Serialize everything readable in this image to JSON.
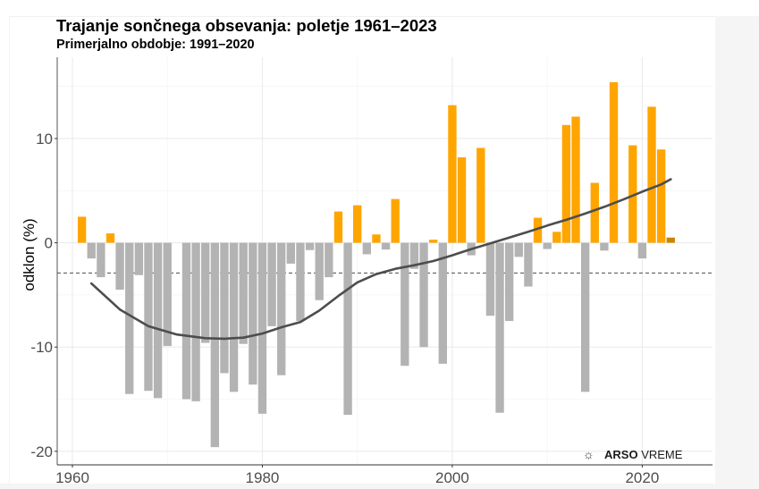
{
  "chart_data": {
    "type": "bar",
    "title": "Trajanje sončnega obsevanja: poletje 1961–2023",
    "subtitle": "Primerjalno obdobje: 1991–2020",
    "xlabel": "",
    "ylabel": "odklon (%)",
    "xlim": [
      1958.4,
      2027.4
    ],
    "ylim": [
      -21.3,
      17.8
    ],
    "x_ticks": [
      1960,
      1980,
      2000,
      2020
    ],
    "x_tick_labels": [
      "1960",
      "1980",
      "2000",
      "2020"
    ],
    "y_ticks": [
      -20,
      -10,
      0,
      10
    ],
    "y_tick_labels": [
      "-20",
      "-10",
      "0",
      "10"
    ],
    "grid": true,
    "legend": "none",
    "categories": [
      1961,
      1962,
      1963,
      1964,
      1965,
      1966,
      1967,
      1968,
      1969,
      1970,
      1971,
      1972,
      1973,
      1974,
      1975,
      1976,
      1977,
      1978,
      1979,
      1980,
      1981,
      1982,
      1983,
      1984,
      1985,
      1986,
      1987,
      1988,
      1989,
      1990,
      1991,
      1992,
      1993,
      1994,
      1995,
      1996,
      1997,
      1998,
      1999,
      2000,
      2001,
      2002,
      2003,
      2004,
      2005,
      2006,
      2007,
      2008,
      2009,
      2010,
      2011,
      2012,
      2013,
      2014,
      2015,
      2016,
      2017,
      2018,
      2019,
      2020,
      2021,
      2022,
      2023
    ],
    "values": [
      2.5,
      -1.5,
      -3.3,
      0.9,
      -4.5,
      -14.5,
      -3.1,
      -14.2,
      -14.9,
      -9.9,
      0.0,
      -15.0,
      -15.2,
      -9.6,
      -19.6,
      -12.5,
      -14.3,
      -9.7,
      -13.6,
      -16.4,
      -8.0,
      -12.7,
      -2.0,
      -7.5,
      -0.7,
      -5.5,
      -3.3,
      3.0,
      -16.5,
      3.6,
      -1.1,
      0.8,
      -0.65,
      4.2,
      -11.8,
      -2.5,
      -10.0,
      0.3,
      -11.6,
      13.2,
      8.2,
      -1.2,
      9.1,
      -7.0,
      -16.3,
      -7.5,
      -1.35,
      -4.2,
      2.4,
      -0.6,
      1.05,
      11.3,
      12.1,
      -14.3,
      5.75,
      -0.75,
      15.4,
      0.0,
      9.35,
      -1.5,
      13.05,
      8.95,
      0.5
    ],
    "colors": {
      "positive": "#ffa500",
      "negative": "#b3b3b3",
      "current_year": "#cc8400",
      "trend": "#4d4d4d",
      "reference_line": "#4d4d4d"
    },
    "highlighted_year": 2023,
    "trend_line": {
      "name": "smoothed trend",
      "x": [
        1962,
        1965,
        1968,
        1971,
        1974,
        1976,
        1978,
        1980,
        1982,
        1984,
        1986,
        1988,
        1990,
        1992,
        1994,
        1996,
        1998,
        2000,
        2002,
        2004,
        2006,
        2008,
        2010,
        2012,
        2014,
        2016,
        2018,
        2020,
        2022,
        2023
      ],
      "y": [
        -3.9,
        -6.4,
        -8.0,
        -8.8,
        -9.15,
        -9.2,
        -9.1,
        -8.7,
        -8.1,
        -7.6,
        -6.5,
        -5.1,
        -3.8,
        -3.0,
        -2.5,
        -2.15,
        -1.75,
        -1.2,
        -0.6,
        -0.05,
        0.5,
        1.05,
        1.65,
        2.2,
        2.8,
        3.45,
        4.15,
        4.9,
        5.6,
        6.1
      ]
    },
    "reference_line": {
      "y": -2.9,
      "style": "dashed"
    }
  },
  "branding": {
    "icon": "sun-slash-icon",
    "brand_bold": "ARSO",
    "brand_regular": "VREME"
  }
}
